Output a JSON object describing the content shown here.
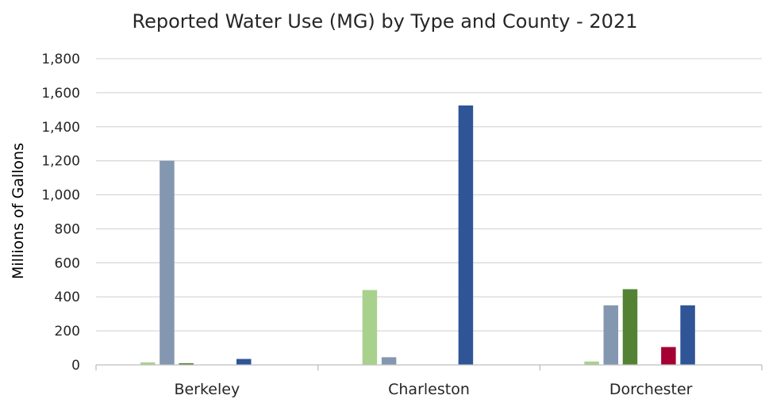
{
  "chart_data": {
    "type": "bar",
    "title": "Reported Water Use (MG) by Type and County - 2021",
    "xlabel": "",
    "ylabel": "Millions of Gallons",
    "ylim": [
      0,
      1800
    ],
    "ytick_step": 200,
    "yticks": [
      "0",
      "200",
      "400",
      "600",
      "800",
      "1,000",
      "1,200",
      "1,400",
      "1,600",
      "1,800"
    ],
    "grid": true,
    "legend": "none",
    "categories": [
      "Berkeley",
      "Charleston",
      "Dorchester"
    ],
    "series": [
      {
        "color": "#a9d18e",
        "values": [
          15,
          440,
          20
        ]
      },
      {
        "color": "#8497b0",
        "values": [
          1200,
          45,
          350
        ]
      },
      {
        "color": "#548235",
        "values": [
          10,
          0,
          445
        ]
      },
      {
        "color": "#c5e0b4",
        "values": [
          0,
          0,
          0
        ]
      },
      {
        "color": "#a50034",
        "values": [
          0,
          0,
          105
        ]
      },
      {
        "color": "#2f5597",
        "values": [
          35,
          1525,
          350
        ]
      }
    ]
  }
}
